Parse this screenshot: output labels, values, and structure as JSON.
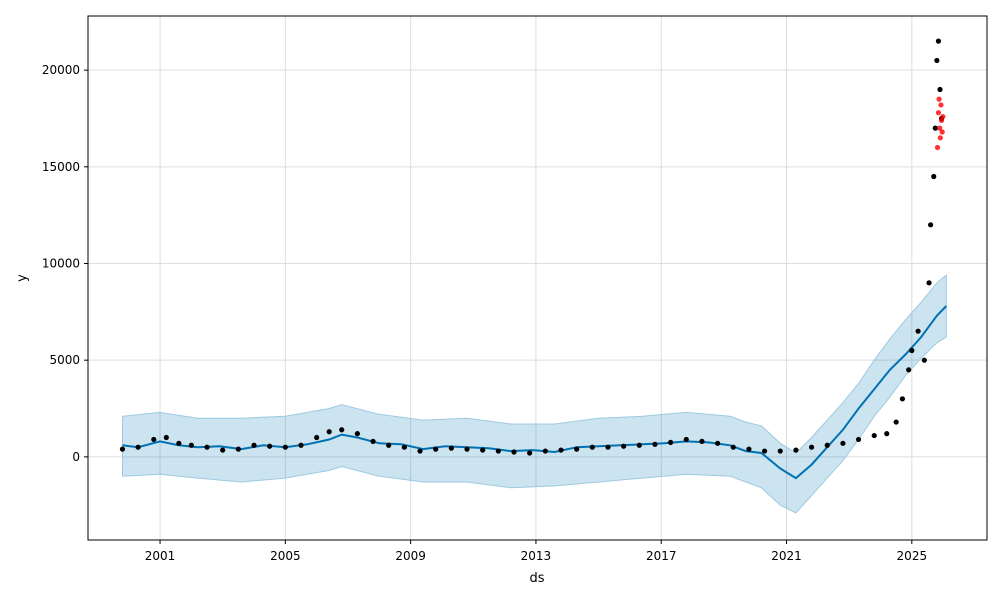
{
  "chart_data": {
    "type": "line",
    "title": "",
    "xlabel": "ds",
    "ylabel": "y",
    "x_tick_labels": [
      "2001",
      "2005",
      "2009",
      "2013",
      "2017",
      "2021",
      "2025"
    ],
    "x_ticks": [
      2001,
      2005,
      2009,
      2013,
      2017,
      2021,
      2025
    ],
    "y_tick_labels": [
      "0",
      "5000",
      "10000",
      "15000",
      "20000"
    ],
    "y_ticks": [
      0,
      5000,
      10000,
      15000,
      20000
    ],
    "xlim": [
      1998.7,
      2027.4
    ],
    "ylim": [
      -4300,
      22800
    ],
    "grid": true,
    "legend": "none",
    "colors": {
      "actual": "#000000",
      "holdout": "#ff0000",
      "forecast_line": "#0072b2",
      "interval_fill": "#0072b2"
    },
    "series": [
      {
        "role": "forecast",
        "x": [
          1999.8,
          2000.3,
          2001.0,
          2001.6,
          2002.2,
          2002.9,
          2003.6,
          2004.3,
          2005.0,
          2005.7,
          2006.4,
          2006.8,
          2007.3,
          2008.0,
          2008.7,
          2009.4,
          2010.1,
          2010.8,
          2011.5,
          2012.2,
          2012.9,
          2013.6,
          2014.3,
          2015.0,
          2015.7,
          2016.4,
          2017.1,
          2017.8,
          2018.5,
          2019.2,
          2019.7,
          2020.2,
          2020.8,
          2021.3,
          2021.8,
          2022.3,
          2022.8,
          2023.3,
          2023.8,
          2024.3,
          2024.8,
          2025.3,
          2025.8,
          2026.1
        ],
        "y": [
          600,
          500,
          800,
          600,
          500,
          550,
          400,
          600,
          500,
          650,
          900,
          1150,
          1000,
          700,
          650,
          400,
          550,
          500,
          450,
          300,
          350,
          250,
          500,
          550,
          600,
          650,
          700,
          800,
          750,
          600,
          300,
          200,
          -600,
          -1100,
          -400,
          500,
          1400,
          2500,
          3500,
          4500,
          5300,
          6200,
          7300,
          7800
        ]
      },
      {
        "role": "forecast_upper",
        "x": [
          1999.8,
          2001.0,
          2002.2,
          2003.6,
          2005.0,
          2006.4,
          2006.8,
          2008.0,
          2009.4,
          2010.8,
          2012.2,
          2013.6,
          2015.0,
          2016.4,
          2017.8,
          2019.2,
          2019.7,
          2020.2,
          2020.8,
          2021.3,
          2021.8,
          2022.3,
          2022.8,
          2023.3,
          2023.8,
          2024.3,
          2024.8,
          2025.3,
          2025.8,
          2026.1
        ],
        "y": [
          2100,
          2300,
          2000,
          2000,
          2100,
          2500,
          2700,
          2200,
          1900,
          2000,
          1700,
          1700,
          2000,
          2100,
          2300,
          2100,
          1800,
          1600,
          700,
          200,
          1000,
          1900,
          2800,
          3800,
          5000,
          6100,
          7100,
          8000,
          9000,
          9400
        ]
      },
      {
        "role": "forecast_lower",
        "x": [
          1999.8,
          2001.0,
          2002.2,
          2003.6,
          2005.0,
          2006.4,
          2006.8,
          2008.0,
          2009.4,
          2010.8,
          2012.2,
          2013.6,
          2015.0,
          2016.4,
          2017.8,
          2019.2,
          2019.7,
          2020.2,
          2020.8,
          2021.3,
          2021.8,
          2022.3,
          2022.8,
          2023.3,
          2023.8,
          2024.3,
          2024.8,
          2025.3,
          2025.8,
          2026.1
        ],
        "y": [
          -1000,
          -900,
          -1100,
          -1300,
          -1100,
          -700,
          -500,
          -1000,
          -1300,
          -1300,
          -1600,
          -1500,
          -1300,
          -1100,
          -900,
          -1000,
          -1300,
          -1600,
          -2500,
          -2900,
          -2000,
          -1100,
          -200,
          900,
          2100,
          3100,
          4200,
          5100,
          5900,
          6200
        ]
      },
      {
        "role": "actual",
        "x": [
          1999.8,
          2000.3,
          2000.8,
          2001.2,
          2001.6,
          2002.0,
          2002.5,
          2003.0,
          2003.5,
          2004.0,
          2004.5,
          2005.0,
          2005.5,
          2006.0,
          2006.4,
          2006.8,
          2007.3,
          2007.8,
          2008.3,
          2008.8,
          2009.3,
          2009.8,
          2010.3,
          2010.8,
          2011.3,
          2011.8,
          2012.3,
          2012.8,
          2013.3,
          2013.8,
          2014.3,
          2014.8,
          2015.3,
          2015.8,
          2016.3,
          2016.8,
          2017.3,
          2017.8,
          2018.3,
          2018.8,
          2019.3,
          2019.8,
          2020.3,
          2020.8,
          2021.3,
          2021.8,
          2022.3,
          2022.8,
          2023.3,
          2023.8,
          2024.2,
          2024.5,
          2024.7,
          2024.9,
          2025.0,
          2025.2,
          2025.4,
          2025.55,
          2025.6,
          2025.7,
          2025.75,
          2025.8,
          2025.85,
          2025.9,
          2025.95
        ],
        "y": [
          400,
          500,
          900,
          1000,
          700,
          600,
          500,
          350,
          400,
          600,
          550,
          500,
          600,
          1000,
          1300,
          1400,
          1200,
          800,
          600,
          500,
          300,
          400,
          450,
          400,
          350,
          300,
          250,
          200,
          300,
          350,
          400,
          500,
          500,
          550,
          600,
          650,
          750,
          900,
          800,
          700,
          500,
          400,
          300,
          300,
          350,
          500,
          600,
          700,
          900,
          1100,
          1200,
          1800,
          3000,
          4500,
          5500,
          6500,
          5000,
          9000,
          12000,
          14500,
          17000,
          20500,
          21500,
          19000,
          17500
        ]
      },
      {
        "role": "holdout",
        "x": [
          2025.82,
          2025.85,
          2025.87,
          2025.89,
          2025.91,
          2025.93,
          2025.95,
          2025.97,
          2025.99
        ],
        "y": [
          16000,
          17800,
          18500,
          17000,
          16500,
          18200,
          17400,
          16800,
          17600
        ]
      }
    ]
  }
}
